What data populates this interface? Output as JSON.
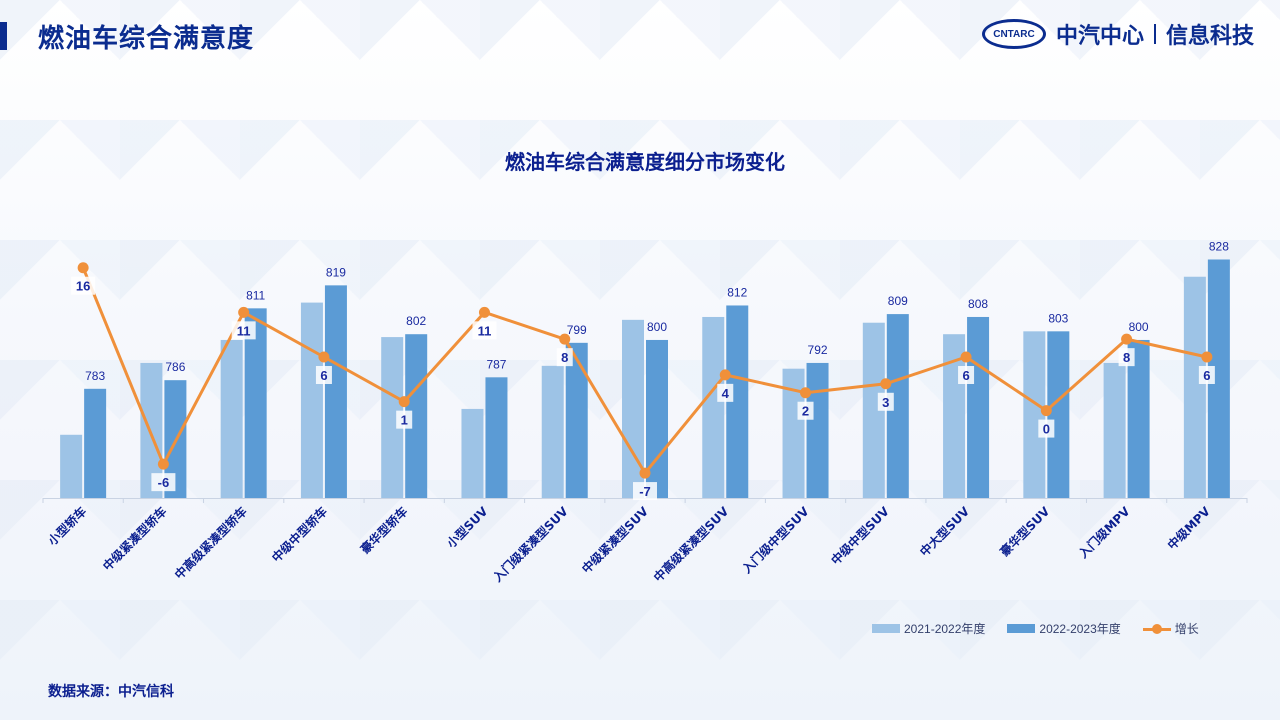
{
  "header": {
    "title": "燃油车综合满意度",
    "brand_logo": "CNTARC",
    "brand_name": "中汽中心",
    "brand_sub": "信息科技"
  },
  "footer": {
    "source": "数据来源：中汽信科"
  },
  "colors": {
    "series1": "#9dc3e6",
    "series2": "#5b9bd5",
    "growth": "#f0903a",
    "label": "#1a2aa0"
  },
  "chart_data": {
    "type": "bar",
    "title": "燃油车综合满意度细分市场变化",
    "categories": [
      "小型轿车",
      "中级紧凑型轿车",
      "中高级紧凑型轿车",
      "中级中型轿车",
      "豪华型轿车",
      "小型SUV",
      "入门级紧凑型SUV",
      "中级紧凑型SUV",
      "中高级紧凑型SUV",
      "入门级中型SUV",
      "中级中型SUV",
      "中大型SUV",
      "豪华型SUV",
      "入门级MPV",
      "中级MPV"
    ],
    "series": [
      {
        "name": "2021-2022年度",
        "values": [
          767,
          792,
          800,
          813,
          801,
          776,
          791,
          807,
          808,
          790,
          806,
          802,
          803,
          792,
          822
        ]
      },
      {
        "name": "2022-2023年度",
        "values": [
          783,
          786,
          811,
          819,
          802,
          787,
          799,
          800,
          812,
          792,
          809,
          808,
          803,
          800,
          828
        ]
      },
      {
        "name": "增长",
        "type": "line",
        "values": [
          16,
          -6,
          11,
          6,
          1,
          11,
          8,
          -7,
          4,
          2,
          3,
          6,
          0,
          8,
          6
        ]
      }
    ],
    "bar_ylim": [
      745,
      832
    ],
    "growth_ylim": [
      -8,
      20
    ],
    "legend_position": "bottom-right"
  }
}
